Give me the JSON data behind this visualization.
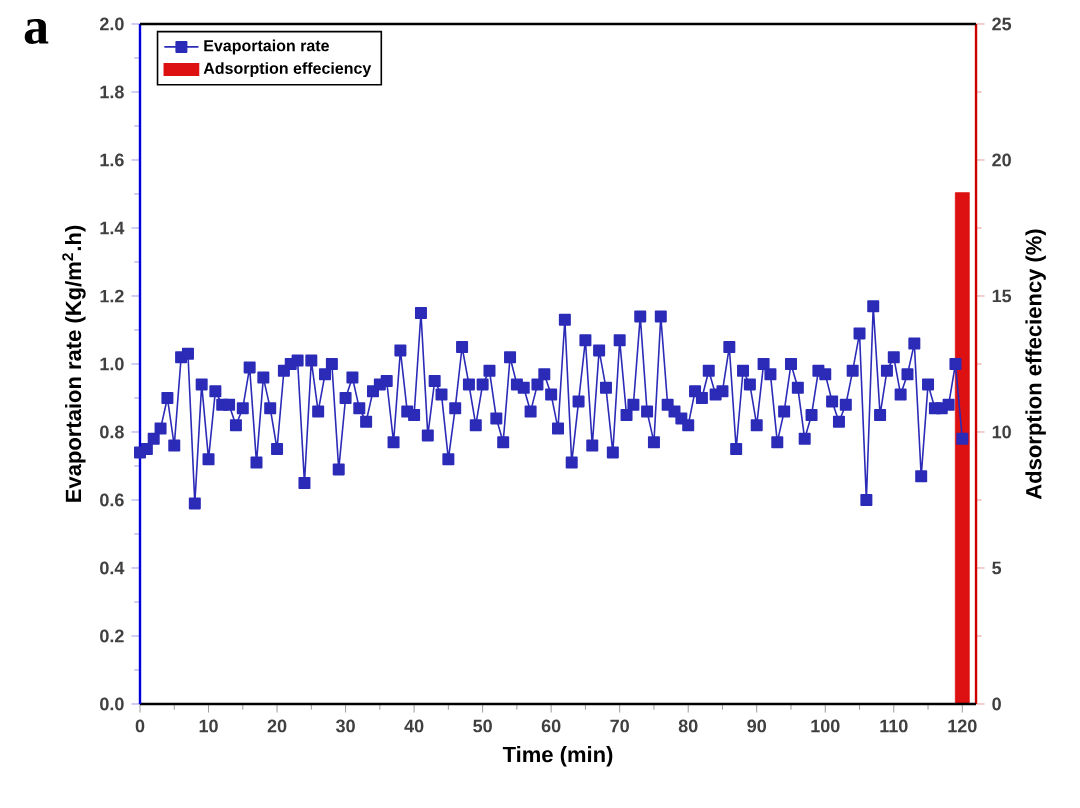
{
  "chart_data": {
    "type": "line",
    "xlabel": "Time (min)",
    "ylabel": "Evaportaion rate (Kg/m$^{2}$.h)",
    "y2label": "Adsorption effeciency (%)",
    "annotations": [
      "a"
    ],
    "xlim": [
      0,
      122
    ],
    "xticks": [
      0,
      10,
      20,
      30,
      40,
      50,
      60,
      70,
      80,
      90,
      100,
      110,
      120
    ],
    "ylim": [
      0,
      2
    ],
    "yticks": [
      {
        "value": 0,
        "label": "0.0"
      },
      {
        "value": 0.2,
        "label": "0.2"
      },
      {
        "value": 0.4,
        "label": "0.4"
      },
      {
        "value": 0.6,
        "label": "0.6"
      },
      {
        "value": 0.8,
        "label": "0.8"
      },
      {
        "value": 1,
        "label": "1.0"
      },
      {
        "value": 1.2,
        "label": "1.2"
      },
      {
        "value": 1.4,
        "label": "1.4"
      },
      {
        "value": 1.6,
        "label": "1.6"
      },
      {
        "value": 1.8,
        "label": "1.8"
      },
      {
        "value": 2,
        "label": "2.0"
      }
    ],
    "y2lim": [
      0,
      25
    ],
    "y2ticks": [
      0,
      5,
      10,
      15,
      20,
      25
    ],
    "legend": "top left",
    "marker": "square",
    "series": [
      {
        "name": "Evaportaion rate",
        "color": "#2b2bb8",
        "x": [
          0,
          1,
          2,
          3,
          4,
          5,
          6,
          7,
          8,
          9,
          10,
          11,
          12,
          13,
          14,
          15,
          16,
          17,
          18,
          19,
          20,
          21,
          22,
          23,
          24,
          25,
          26,
          27,
          28,
          29,
          30,
          31,
          32,
          33,
          34,
          35,
          36,
          37,
          38,
          39,
          40,
          41,
          42,
          43,
          44,
          45,
          46,
          47,
          48,
          49,
          50,
          51,
          52,
          53,
          54,
          55,
          56,
          57,
          58,
          59,
          60,
          61,
          62,
          63,
          64,
          65,
          66,
          67,
          68,
          69,
          70,
          71,
          72,
          73,
          74,
          75,
          76,
          77,
          78,
          79,
          80,
          81,
          82,
          83,
          84,
          85,
          86,
          87,
          88,
          89,
          90,
          91,
          92,
          93,
          94,
          95,
          96,
          97,
          98,
          99,
          100,
          101,
          102,
          103,
          104,
          105,
          106,
          107,
          108,
          109,
          110,
          111,
          112,
          113,
          114,
          115,
          116,
          117,
          118,
          119,
          120
        ],
        "values": [
          0.74,
          0.75,
          0.78,
          0.81,
          0.9,
          0.76,
          1.02,
          1.03,
          0.59,
          0.94,
          0.72,
          0.92,
          0.88,
          0.88,
          0.82,
          0.87,
          0.99,
          0.71,
          0.96,
          0.87,
          0.75,
          0.98,
          1.0,
          1.01,
          0.65,
          1.01,
          0.86,
          0.97,
          1.0,
          0.69,
          0.9,
          0.96,
          0.87,
          0.83,
          0.92,
          0.94,
          0.95,
          0.77,
          1.04,
          0.86,
          0.85,
          1.15,
          0.79,
          0.95,
          0.91,
          0.72,
          0.87,
          1.05,
          0.94,
          0.82,
          0.94,
          0.98,
          0.84,
          0.77,
          1.02,
          0.94,
          0.93,
          0.86,
          0.94,
          0.97,
          0.91,
          0.81,
          1.13,
          0.71,
          0.89,
          1.07,
          0.76,
          1.04,
          0.93,
          0.74,
          1.07,
          0.85,
          0.88,
          1.14,
          0.86,
          0.77,
          1.14,
          0.88,
          0.86,
          0.84,
          0.82,
          0.92,
          0.9,
          0.98,
          0.91,
          0.92,
          1.05,
          0.75,
          0.98,
          0.94,
          0.82,
          1.0,
          0.97,
          0.77,
          0.86,
          1.0,
          0.93,
          0.78,
          0.85,
          0.98,
          0.97,
          0.89,
          0.83,
          0.88,
          0.98,
          1.09,
          0.6,
          1.17,
          0.85,
          0.98,
          1.02,
          0.91,
          0.97,
          1.06,
          0.67,
          0.94,
          0.87,
          0.87,
          0.88,
          1.0,
          0.78
        ]
      },
      {
        "name": "Adsorption effeciency",
        "type": "bar",
        "axis": "y2",
        "color": "#dd1111",
        "x": [
          120
        ],
        "values": [
          18.8
        ]
      }
    ]
  }
}
